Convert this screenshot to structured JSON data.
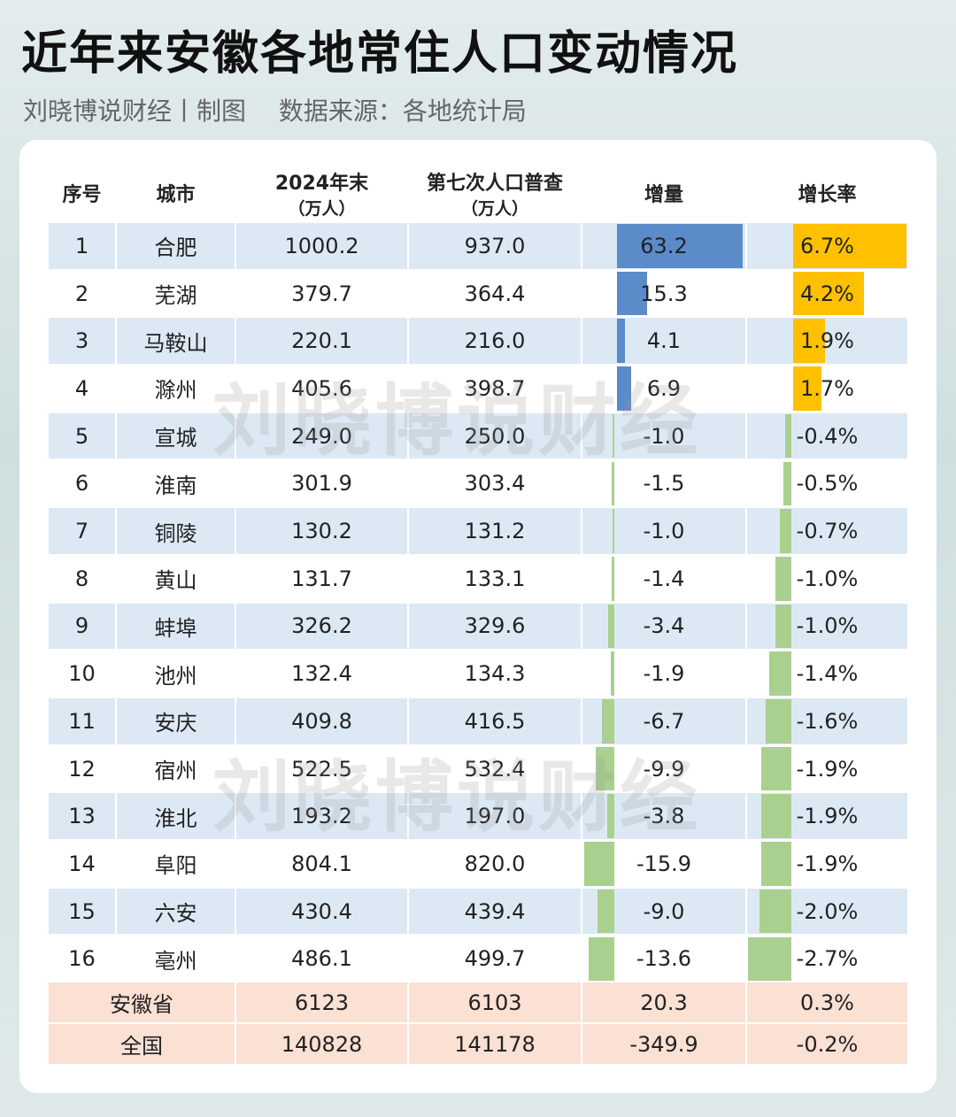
{
  "header": {
    "title": "近年来安徽各地常住人口变动情况",
    "subtitle": "刘晓博说财经丨制图　 数据来源：各地统计局"
  },
  "table": {
    "columns": [
      [
        "序号"
      ],
      [
        "城市"
      ],
      [
        "2024年末",
        "（万人）"
      ],
      [
        "第七次人口普查",
        "（万人）"
      ],
      [
        "增量"
      ],
      [
        "增长率"
      ]
    ],
    "rows": [
      [
        "1",
        "合肥",
        "1000.2",
        "937.0",
        "63.2",
        "6.7%"
      ],
      [
        "2",
        "芜湖",
        "379.7",
        "364.4",
        "15.3",
        "4.2%"
      ],
      [
        "3",
        "马鞍山",
        "220.1",
        "216.0",
        "4.1",
        "1.9%"
      ],
      [
        "4",
        "滁州",
        "405.6",
        "398.7",
        "6.9",
        "1.7%"
      ],
      [
        "5",
        "宣城",
        "249.0",
        "250.0",
        "-1.0",
        "-0.4%"
      ],
      [
        "6",
        "淮南",
        "301.9",
        "303.4",
        "-1.5",
        "-0.5%"
      ],
      [
        "7",
        "铜陵",
        "130.2",
        "131.2",
        "-1.0",
        "-0.7%"
      ],
      [
        "8",
        "黄山",
        "131.7",
        "133.1",
        "-1.4",
        "-1.0%"
      ],
      [
        "9",
        "蚌埠",
        "326.2",
        "329.6",
        "-3.4",
        "-1.0%"
      ],
      [
        "10",
        "池州",
        "132.4",
        "134.3",
        "-1.9",
        "-1.4%"
      ],
      [
        "11",
        "安庆",
        "409.8",
        "416.5",
        "-6.7",
        "-1.6%"
      ],
      [
        "12",
        "宿州",
        "522.5",
        "532.4",
        "-9.9",
        "-1.9%"
      ],
      [
        "13",
        "淮北",
        "193.2",
        "197.0",
        "-3.8",
        "-1.9%"
      ],
      [
        "14",
        "阜阳",
        "804.1",
        "820.0",
        "-15.9",
        "-1.9%"
      ],
      [
        "15",
        "六安",
        "430.4",
        "439.4",
        "-9.0",
        "-2.0%"
      ],
      [
        "16",
        "亳州",
        "486.1",
        "499.7",
        "-13.6",
        "-2.7%"
      ]
    ],
    "summary": [
      [
        "安徽省",
        "6123",
        "6103",
        "20.3",
        "0.3%"
      ],
      [
        "全国",
        "140828",
        "141178",
        "-349.9",
        "-0.2%"
      ]
    ]
  },
  "watermark": [
    "刘晓博说财经",
    "刘晓博说财经"
  ]
}
